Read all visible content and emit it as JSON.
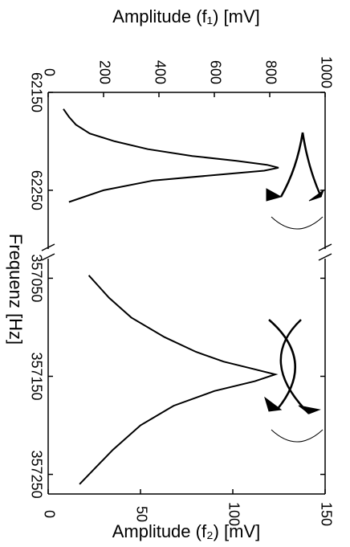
{
  "chart_data": [
    {
      "type": "line",
      "title": "Amplitude (f₁) [mV]",
      "xlabel": "Frequenz [Hz]",
      "color": "#000000",
      "x": [
        62167,
        62175,
        62183,
        62192,
        62200,
        62208,
        62215,
        62220,
        62224,
        62227,
        62230,
        62234,
        62240,
        62250,
        62262
      ],
      "values": [
        55,
        75,
        100,
        150,
        240,
        360,
        520,
        680,
        790,
        832,
        780,
        620,
        380,
        200,
        75
      ],
      "xlim": [
        62150,
        62310
      ],
      "xticks": [
        62150,
        62250
      ],
      "ylim": [
        0,
        1000
      ],
      "yticks": [
        0,
        200,
        400,
        600,
        800,
        1000
      ]
    },
    {
      "type": "line",
      "title": "Amplitude (f₂) [mV]",
      "color": "#000000",
      "x": [
        357047,
        357070,
        357090,
        357110,
        357125,
        357135,
        357142,
        357148,
        357155,
        357165,
        357180,
        357200,
        357225,
        357260
      ],
      "values": [
        22,
        33,
        45,
        63,
        80,
        95,
        110,
        123,
        112,
        90,
        68,
        50,
        35,
        17
      ],
      "xlim": [
        357030,
        357270
      ],
      "xticks": [
        357050,
        357150,
        357250
      ],
      "ylim": [
        0,
        150
      ],
      "yticks": [
        0,
        50,
        100,
        150
      ]
    }
  ]
}
